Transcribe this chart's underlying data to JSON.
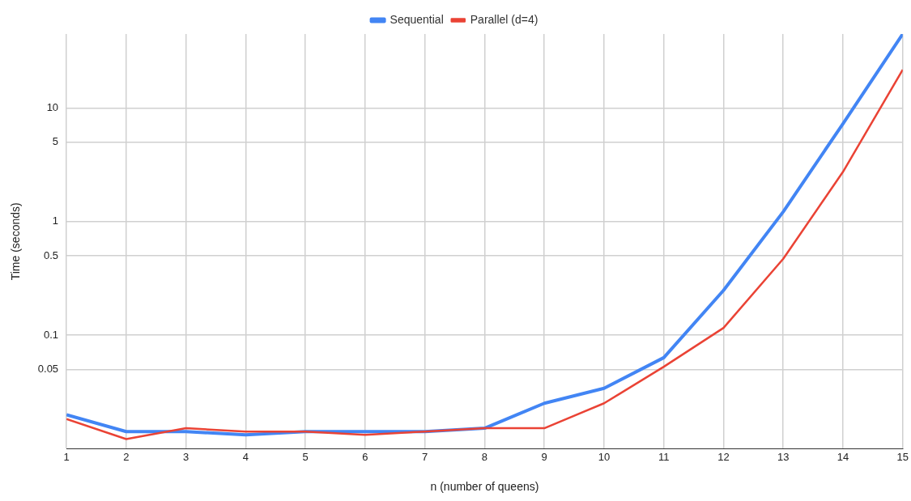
{
  "chart_data": {
    "type": "line",
    "xlabel": "n (number of queens)",
    "ylabel": "Time (seconds)",
    "x": [
      1,
      2,
      3,
      4,
      5,
      6,
      7,
      8,
      9,
      10,
      11,
      12,
      13,
      14,
      15
    ],
    "series": [
      {
        "name": "Sequential",
        "color": "#4285f4",
        "values": [
          0.02,
          0.0142,
          0.0142,
          0.0133,
          0.0142,
          0.0142,
          0.0142,
          0.0152,
          0.0252,
          0.0341,
          0.0635,
          0.248,
          1.22,
          7.27,
          44.7
        ]
      },
      {
        "name": "Parallel (d=4)",
        "color": "#ea4335",
        "values": [
          0.0183,
          0.0122,
          0.0152,
          0.0142,
          0.0142,
          0.0133,
          0.0142,
          0.0152,
          0.0152,
          0.0252,
          0.0528,
          0.116,
          0.47,
          2.74,
          21.7
        ]
      }
    ],
    "log": "y",
    "xlim": [
      1,
      15
    ],
    "xticks": [
      1,
      2,
      3,
      4,
      5,
      6,
      7,
      8,
      9,
      10,
      11,
      12,
      13,
      14,
      15
    ],
    "ylim": [
      0.01,
      44.7
    ],
    "yticks": [
      0.05,
      0.1,
      0.5,
      1,
      5,
      10
    ],
    "grid": true,
    "legend": "top",
    "marker": "none",
    "line_style": "solid"
  }
}
